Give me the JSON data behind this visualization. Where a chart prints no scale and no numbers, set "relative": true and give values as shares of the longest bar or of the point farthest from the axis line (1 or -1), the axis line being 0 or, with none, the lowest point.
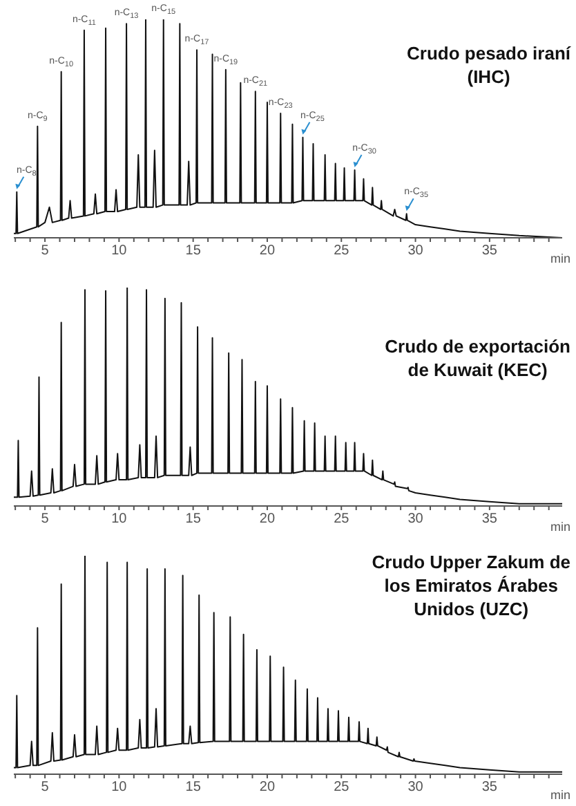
{
  "chart_data": [
    {
      "type": "line",
      "title": "Crudo pesado iraní\n(IHC)",
      "xlabel": "min",
      "relative": true,
      "color": "#111111",
      "xlim": [
        2.9,
        39.9
      ],
      "xticks": [
        {
          "value": 3,
          "label": null
        },
        {
          "value": 4,
          "label": null
        },
        5,
        {
          "value": 6,
          "label": null
        },
        {
          "value": 7,
          "label": null
        },
        {
          "value": 8,
          "label": null
        },
        {
          "value": 9,
          "label": null
        },
        10,
        {
          "value": 11,
          "label": null
        },
        {
          "value": 12,
          "label": null
        },
        {
          "value": 13,
          "label": null
        },
        {
          "value": 14,
          "label": null
        },
        15,
        {
          "value": 16,
          "label": null
        },
        {
          "value": 17,
          "label": null
        },
        {
          "value": 18,
          "label": null
        },
        {
          "value": 19,
          "label": null
        },
        20,
        {
          "value": 21,
          "label": null
        },
        {
          "value": 22,
          "label": null
        },
        {
          "value": 23,
          "label": null
        },
        {
          "value": 24,
          "label": null
        },
        25,
        {
          "value": 26,
          "label": null
        },
        {
          "value": 27,
          "label": null
        },
        {
          "value": 28,
          "label": null
        },
        {
          "value": 29,
          "label": null
        },
        30,
        {
          "value": 31,
          "label": null
        },
        {
          "value": 32,
          "label": null
        },
        {
          "value": 33,
          "label": null
        },
        {
          "value": 34,
          "label": null
        },
        35,
        {
          "value": 36,
          "label": null
        },
        {
          "value": 37,
          "label": null
        },
        {
          "value": 38,
          "label": null
        },
        {
          "value": 39,
          "label": null
        }
      ],
      "x": [
        2.9,
        3.05,
        3.1,
        3.15,
        4.45,
        4.5,
        4.55,
        5.0,
        5.3,
        5.5,
        6.05,
        6.1,
        6.15,
        6.6,
        6.7,
        6.8,
        7.6,
        7.65,
        7.7,
        8.3,
        8.4,
        8.5,
        9.05,
        9.1,
        9.15,
        9.7,
        9.8,
        9.9,
        10.45,
        10.5,
        10.55,
        11.2,
        11.3,
        11.4,
        11.75,
        11.8,
        11.85,
        12.3,
        12.4,
        12.5,
        12.95,
        13,
        13.05,
        14.05,
        14.1,
        14.15,
        14.6,
        14.7,
        14.8,
        15.2,
        15.25,
        15.3,
        16.25,
        16.3,
        16.35,
        17.15,
        17.2,
        17.25,
        18.15,
        18.2,
        18.25,
        19.15,
        19.2,
        19.25,
        19.95,
        20,
        20.05,
        20.85,
        20.9,
        20.95,
        21.65,
        21.7,
        21.75,
        22.35,
        22.4,
        22.45,
        23.05,
        23.1,
        23.15,
        23.85,
        23.9,
        23.95,
        24.55,
        24.6,
        24.65,
        25.15,
        25.2,
        25.25,
        25.85,
        25.9,
        25.95,
        26.45,
        26.5,
        26.55,
        27.05,
        27.1,
        27.15,
        27.65,
        27.7,
        27.75,
        28.5,
        28.6,
        28.7,
        29.35,
        29.4,
        29.45,
        30,
        31,
        32,
        33,
        35,
        37,
        39.9
      ],
      "values": [
        0.02,
        0.02,
        0.21,
        0.02,
        0.05,
        0.51,
        0.05,
        0.07,
        0.14,
        0.07,
        0.08,
        0.76,
        0.08,
        0.09,
        0.17,
        0.09,
        0.1,
        0.95,
        0.1,
        0.11,
        0.2,
        0.11,
        0.12,
        0.96,
        0.12,
        0.12,
        0.22,
        0.12,
        0.13,
        0.98,
        0.13,
        0.14,
        0.38,
        0.14,
        0.14,
        1,
        0.14,
        0.14,
        0.4,
        0.14,
        0.15,
        1,
        0.15,
        0.15,
        0.98,
        0.15,
        0.15,
        0.35,
        0.15,
        0.16,
        0.86,
        0.16,
        0.16,
        0.84,
        0.16,
        0.16,
        0.77,
        0.16,
        0.16,
        0.71,
        0.16,
        0.16,
        0.67,
        0.16,
        0.16,
        0.62,
        0.16,
        0.16,
        0.57,
        0.16,
        0.16,
        0.52,
        0.16,
        0.17,
        0.46,
        0.17,
        0.17,
        0.43,
        0.17,
        0.17,
        0.38,
        0.17,
        0.17,
        0.34,
        0.17,
        0.17,
        0.32,
        0.17,
        0.17,
        0.31,
        0.17,
        0.17,
        0.27,
        0.17,
        0.15,
        0.23,
        0.15,
        0.13,
        0.17,
        0.13,
        0.1,
        0.13,
        0.1,
        0.08,
        0.11,
        0.08,
        0.06,
        0.05,
        0.04,
        0.03,
        0.02,
        0.01,
        0
      ],
      "annotations": [
        {
          "text": "n-C$_{8}$",
          "x": 3.1,
          "y": 0.21
        },
        {
          "text": "n-C$_{9}$",
          "x": 4.5,
          "y": 0.51
        },
        {
          "text": "n-C$_{10}$",
          "x": 6.1,
          "y": 0.76
        },
        {
          "text": "n-C$_{11}$",
          "x": 7.65,
          "y": 0.95
        },
        {
          "text": "n-C$_{13}$",
          "x": 10.5,
          "y": 0.98
        },
        {
          "text": "n-C$_{15}$",
          "x": 13,
          "y": 1
        },
        {
          "text": "n-C$_{17}$",
          "x": 15.25,
          "y": 0.86
        },
        {
          "text": "n-C$_{19}$",
          "x": 17.2,
          "y": 0.77
        },
        {
          "text": "n-C$_{21}$",
          "x": 19.2,
          "y": 0.67
        },
        {
          "text": "n-C$_{23}$",
          "x": 20.9,
          "y": 0.57
        },
        {
          "text": "n-C$_{25}$",
          "x": 22.4,
          "y": 0.46
        },
        {
          "text": "n-C$_{30}$",
          "x": 25.9,
          "y": 0.31
        },
        {
          "text": "n-C$_{35}$",
          "x": 29.4,
          "y": 0.11
        }
      ]
    },
    {
      "type": "line",
      "title": "Crudo de exportación\nde Kuwait (KEC)",
      "xlabel": "min",
      "relative": true,
      "color": "#111111",
      "xlim": [
        2.9,
        39.9
      ],
      "xticks": [
        {
          "value": 3,
          "label": null
        },
        {
          "value": 4,
          "label": null
        },
        5,
        {
          "value": 6,
          "label": null
        },
        {
          "value": 7,
          "label": null
        },
        {
          "value": 8,
          "label": null
        },
        {
          "value": 9,
          "label": null
        },
        10,
        {
          "value": 11,
          "label": null
        },
        {
          "value": 12,
          "label": null
        },
        {
          "value": 13,
          "label": null
        },
        {
          "value": 14,
          "label": null
        },
        15,
        {
          "value": 16,
          "label": null
        },
        {
          "value": 17,
          "label": null
        },
        {
          "value": 18,
          "label": null
        },
        {
          "value": 19,
          "label": null
        },
        20,
        {
          "value": 21,
          "label": null
        },
        {
          "value": 22,
          "label": null
        },
        {
          "value": 23,
          "label": null
        },
        {
          "value": 24,
          "label": null
        },
        25,
        {
          "value": 26,
          "label": null
        },
        {
          "value": 27,
          "label": null
        },
        {
          "value": 28,
          "label": null
        },
        {
          "value": 29,
          "label": null
        },
        30,
        {
          "value": 31,
          "label": null
        },
        {
          "value": 32,
          "label": null
        },
        {
          "value": 33,
          "label": null
        },
        {
          "value": 34,
          "label": null
        },
        35,
        {
          "value": 36,
          "label": null
        },
        {
          "value": 37,
          "label": null
        },
        {
          "value": 38,
          "label": null
        },
        {
          "value": 39,
          "label": null
        }
      ],
      "x": [
        2.9,
        3.15,
        3.2,
        3.25,
        4.0,
        4.1,
        4.2,
        4.55,
        4.6,
        4.65,
        5.4,
        5.5,
        5.6,
        6.05,
        6.1,
        6.15,
        6.9,
        7,
        7.1,
        7.65,
        7.7,
        7.75,
        8.4,
        8.5,
        8.6,
        9.05,
        9.1,
        9.15,
        9.8,
        9.9,
        10,
        10.5,
        10.55,
        10.6,
        11.3,
        11.4,
        11.5,
        11.8,
        11.85,
        11.9,
        12.4,
        12.5,
        12.6,
        13.05,
        13.1,
        13.15,
        14.15,
        14.2,
        14.25,
        14.7,
        14.8,
        14.9,
        15.25,
        15.3,
        15.35,
        16.25,
        16.3,
        16.35,
        17.35,
        17.4,
        17.45,
        18.25,
        18.3,
        18.35,
        19.15,
        19.2,
        19.25,
        19.95,
        20,
        20.05,
        20.85,
        20.9,
        20.95,
        21.65,
        21.7,
        21.75,
        22.45,
        22.5,
        22.55,
        23.15,
        23.2,
        23.25,
        23.85,
        23.9,
        23.95,
        24.55,
        24.6,
        24.65,
        25.25,
        25.3,
        25.35,
        25.85,
        25.9,
        25.95,
        26.45,
        26.5,
        26.55,
        27.05,
        27.1,
        27.15,
        27.75,
        27.8,
        27.85,
        28.55,
        28.6,
        28.65,
        29.45,
        29.5,
        29.55,
        30,
        31,
        32,
        33,
        35,
        37,
        39.9
      ],
      "values": [
        0.04,
        0.04,
        0.3,
        0.04,
        0.045,
        0.16,
        0.045,
        0.05,
        0.59,
        0.05,
        0.06,
        0.17,
        0.06,
        0.07,
        0.84,
        0.07,
        0.09,
        0.19,
        0.09,
        0.1,
        0.99,
        0.1,
        0.1,
        0.23,
        0.1,
        0.11,
        0.985,
        0.11,
        0.12,
        0.24,
        0.12,
        0.12,
        1,
        0.12,
        0.13,
        0.28,
        0.13,
        0.13,
        0.99,
        0.13,
        0.13,
        0.32,
        0.13,
        0.14,
        0.95,
        0.14,
        0.14,
        0.93,
        0.14,
        0.14,
        0.27,
        0.14,
        0.15,
        0.82,
        0.15,
        0.15,
        0.77,
        0.15,
        0.15,
        0.7,
        0.15,
        0.15,
        0.67,
        0.15,
        0.15,
        0.57,
        0.15,
        0.15,
        0.55,
        0.15,
        0.15,
        0.49,
        0.15,
        0.15,
        0.45,
        0.15,
        0.16,
        0.39,
        0.16,
        0.16,
        0.38,
        0.16,
        0.16,
        0.32,
        0.16,
        0.16,
        0.32,
        0.16,
        0.16,
        0.29,
        0.16,
        0.16,
        0.29,
        0.16,
        0.16,
        0.24,
        0.16,
        0.14,
        0.21,
        0.14,
        0.12,
        0.16,
        0.12,
        0.1,
        0.11,
        0.09,
        0.08,
        0.085,
        0.07,
        0.06,
        0.05,
        0.04,
        0.03,
        0.02,
        0.01,
        0.01
      ]
    },
    {
      "type": "line",
      "title": "Crudo Upper Zakum de\nlos Emiratos Árabes\nUnidos (UZC)",
      "xlabel": "min",
      "relative": true,
      "color": "#111111",
      "xlim": [
        2.9,
        39.9
      ],
      "xticks": [
        {
          "value": 3,
          "label": null
        },
        {
          "value": 4,
          "label": null
        },
        5,
        {
          "value": 6,
          "label": null
        },
        {
          "value": 7,
          "label": null
        },
        {
          "value": 8,
          "label": null
        },
        {
          "value": 9,
          "label": null
        },
        10,
        {
          "value": 11,
          "label": null
        },
        {
          "value": 12,
          "label": null
        },
        {
          "value": 13,
          "label": null
        },
        {
          "value": 14,
          "label": null
        },
        15,
        {
          "value": 16,
          "label": null
        },
        {
          "value": 17,
          "label": null
        },
        {
          "value": 18,
          "label": null
        },
        {
          "value": 19,
          "label": null
        },
        20,
        {
          "value": 21,
          "label": null
        },
        {
          "value": 22,
          "label": null
        },
        {
          "value": 23,
          "label": null
        },
        {
          "value": 24,
          "label": null
        },
        25,
        {
          "value": 26,
          "label": null
        },
        {
          "value": 27,
          "label": null
        },
        {
          "value": 28,
          "label": null
        },
        {
          "value": 29,
          "label": null
        },
        30,
        {
          "value": 31,
          "label": null
        },
        {
          "value": 32,
          "label": null
        },
        {
          "value": 33,
          "label": null
        },
        {
          "value": 34,
          "label": null
        },
        35,
        {
          "value": 36,
          "label": null
        },
        {
          "value": 37,
          "label": null
        },
        {
          "value": 38,
          "label": null
        },
        {
          "value": 39,
          "label": null
        }
      ],
      "x": [
        2.9,
        3.05,
        3.1,
        3.15,
        4.0,
        4.1,
        4.2,
        4.45,
        4.5,
        4.55,
        5.4,
        5.5,
        5.6,
        6.05,
        6.1,
        6.15,
        6.9,
        7,
        7.1,
        7.65,
        7.7,
        7.75,
        8.4,
        8.5,
        8.6,
        9.15,
        9.2,
        9.25,
        9.8,
        9.9,
        10,
        10.5,
        10.55,
        10.6,
        11.3,
        11.4,
        11.5,
        11.85,
        11.9,
        11.95,
        12.4,
        12.5,
        12.6,
        13.05,
        13.1,
        13.15,
        14.25,
        14.3,
        14.35,
        14.7,
        14.8,
        14.9,
        15.35,
        15.4,
        15.45,
        16.35,
        16.4,
        16.45,
        17.45,
        17.5,
        17.55,
        18.35,
        18.4,
        18.45,
        19.25,
        19.3,
        19.35,
        20.15,
        20.2,
        20.25,
        21.05,
        21.1,
        21.15,
        21.85,
        21.9,
        21.95,
        22.65,
        22.7,
        22.75,
        23.35,
        23.4,
        23.45,
        24.05,
        24.1,
        24.15,
        24.75,
        24.8,
        24.85,
        25.45,
        25.5,
        25.55,
        26.15,
        26.2,
        26.25,
        26.75,
        26.8,
        26.85,
        27.35,
        27.4,
        27.45,
        28.05,
        28.1,
        28.15,
        28.85,
        28.9,
        28.95,
        29.85,
        29.9,
        29.95,
        31,
        32,
        33,
        35,
        37,
        39.9
      ],
      "values": [
        0.03,
        0.03,
        0.36,
        0.03,
        0.04,
        0.15,
        0.04,
        0.04,
        0.67,
        0.04,
        0.06,
        0.19,
        0.06,
        0.065,
        0.87,
        0.065,
        0.08,
        0.18,
        0.08,
        0.09,
        1,
        0.09,
        0.09,
        0.22,
        0.09,
        0.1,
        0.97,
        0.1,
        0.11,
        0.21,
        0.11,
        0.11,
        0.97,
        0.11,
        0.12,
        0.25,
        0.12,
        0.12,
        0.94,
        0.12,
        0.125,
        0.3,
        0.125,
        0.13,
        0.94,
        0.13,
        0.14,
        0.91,
        0.14,
        0.14,
        0.22,
        0.14,
        0.145,
        0.82,
        0.145,
        0.15,
        0.74,
        0.15,
        0.15,
        0.72,
        0.15,
        0.15,
        0.64,
        0.15,
        0.15,
        0.57,
        0.15,
        0.15,
        0.54,
        0.15,
        0.15,
        0.49,
        0.15,
        0.15,
        0.43,
        0.15,
        0.15,
        0.39,
        0.15,
        0.15,
        0.35,
        0.15,
        0.15,
        0.3,
        0.15,
        0.15,
        0.29,
        0.15,
        0.15,
        0.26,
        0.15,
        0.15,
        0.24,
        0.15,
        0.14,
        0.21,
        0.14,
        0.13,
        0.17,
        0.13,
        0.11,
        0.125,
        0.1,
        0.08,
        0.1,
        0.08,
        0.06,
        0.07,
        0.06,
        0.05,
        0.04,
        0.03,
        0.02,
        0.01,
        0.01
      ]
    }
  ]
}
